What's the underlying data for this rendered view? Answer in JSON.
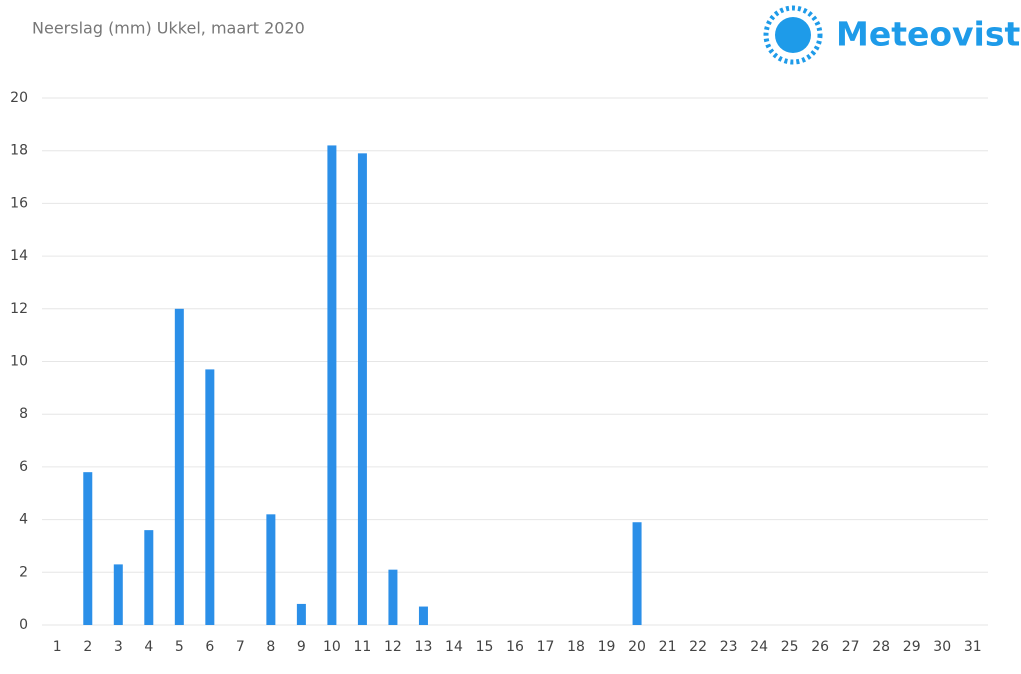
{
  "logo": {
    "text": "Meteovista"
  },
  "chart_data": {
    "type": "bar",
    "title": "Neerslag (mm) Ukkel, maart 2020",
    "categories": [
      "1",
      "2",
      "3",
      "4",
      "5",
      "6",
      "7",
      "8",
      "9",
      "10",
      "11",
      "12",
      "13",
      "14",
      "15",
      "16",
      "17",
      "18",
      "19",
      "20",
      "21",
      "22",
      "23",
      "24",
      "25",
      "26",
      "27",
      "28",
      "29",
      "30",
      "31"
    ],
    "values": [
      0,
      5.8,
      2.3,
      3.6,
      12.0,
      9.7,
      0,
      4.2,
      0.8,
      18.2,
      17.9,
      2.1,
      0.7,
      0,
      0,
      0,
      0,
      0,
      0,
      3.9,
      0,
      0,
      0,
      0,
      0,
      0,
      0,
      0,
      0,
      0,
      0
    ],
    "color": "#2b8fe8",
    "ylim": [
      0,
      20
    ],
    "yticks": [
      0,
      2,
      4,
      6,
      8,
      10,
      12,
      14,
      16,
      18,
      20
    ],
    "grid": true
  }
}
